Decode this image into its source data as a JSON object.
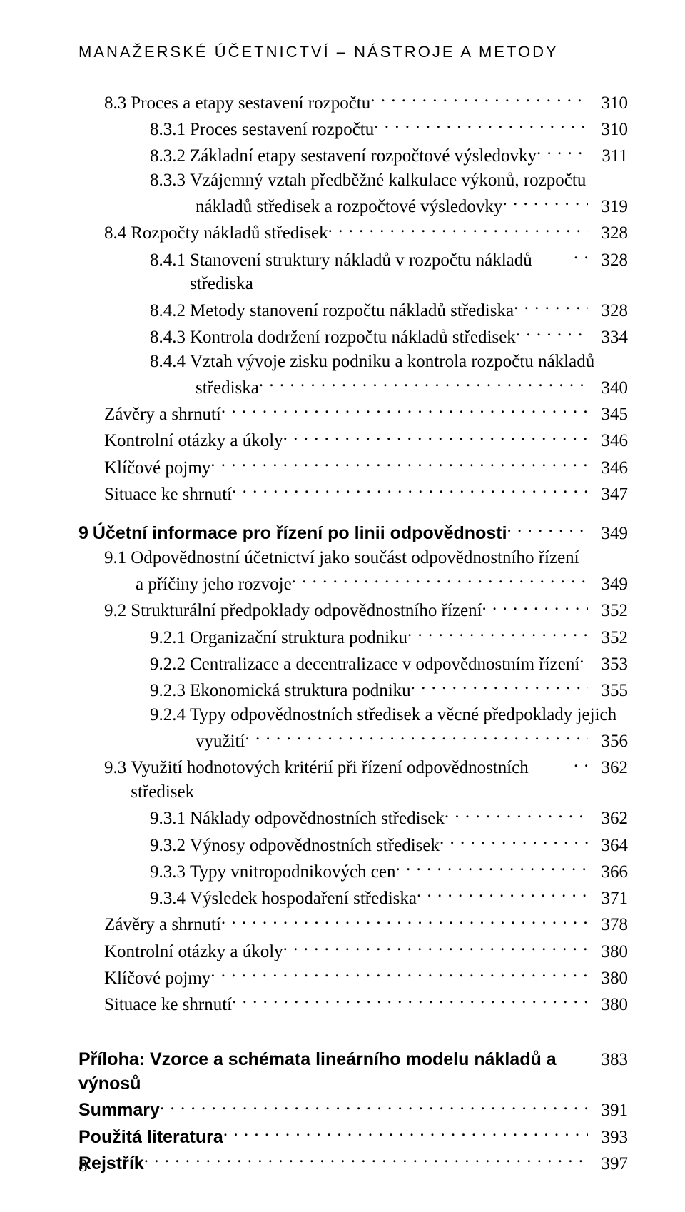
{
  "running_head": "MANAŽERSKÉ ÚČETNICTVÍ – NÁSTROJE A METODY",
  "folio": "8",
  "rows": [
    {
      "cls": "lv2",
      "num": "8.3",
      "label": "Proces a etapy sestavení rozpočtu",
      "page": "310"
    },
    {
      "cls": "lv3",
      "num": "8.3.1",
      "label": "Proces sestavení rozpočtu",
      "page": "310"
    },
    {
      "cls": "lv3",
      "num": "8.3.2",
      "label": "Základní etapy sestavení rozpočtové výsledovky",
      "page": "311"
    },
    {
      "cls": "lv3",
      "num": "8.3.3",
      "label": "Vzájemný vztah předběžné kalkulace výkonů, rozpočtu",
      "nopage": true
    },
    {
      "cls": "cont",
      "label": "nákladů středisek a rozpočtové výsledovky",
      "page": "319"
    },
    {
      "cls": "lv2",
      "num": "8.4",
      "label": "Rozpočty nákladů středisek",
      "page": "328"
    },
    {
      "cls": "lv3",
      "num": "8.4.1",
      "label": "Stanovení struktury nákladů v rozpočtu nákladů střediska",
      "page": "328",
      "tight": true
    },
    {
      "cls": "lv3",
      "num": "8.4.2",
      "label": "Metody stanovení rozpočtu nákladů střediska",
      "page": "328"
    },
    {
      "cls": "lv3",
      "num": "8.4.3",
      "label": "Kontrola dodržení rozpočtu nákladů středisek",
      "page": "334"
    },
    {
      "cls": "lv3",
      "num": "8.4.4",
      "label": "Vztah vývoje zisku podniku a kontrola rozpočtu nákladů",
      "nopage": true
    },
    {
      "cls": "cont",
      "label": "střediska",
      "page": "340"
    },
    {
      "cls": "lv2",
      "label": "Závěry a shrnutí",
      "page": "345"
    },
    {
      "cls": "lv2",
      "label": "Kontrolní otázky a úkoly",
      "page": "346"
    },
    {
      "cls": "lv2",
      "label": "Klíčové pojmy",
      "page": "346"
    },
    {
      "cls": "lv2",
      "label": "Situace ke shrnutí",
      "page": "347"
    },
    {
      "gap": "block-gap"
    },
    {
      "cls": "lv1",
      "num": "9",
      "numcls": "chapter-num",
      "label": "Účetní informace pro řízení po linii odpovědnosti",
      "labelcls": "chapter-title",
      "page": "349"
    },
    {
      "cls": "lv2",
      "num": "9.1",
      "label": "Odpovědnostní účetnictví jako součást odpovědnostního řízení",
      "nopage": true
    },
    {
      "cls": "cont2",
      "label": "a příčiny jeho rozvoje",
      "page": "349",
      "contpad": "80px"
    },
    {
      "cls": "lv2",
      "num": "9.2",
      "label": "Strukturální předpoklady odpovědnostního řízení",
      "page": "352"
    },
    {
      "cls": "lv3",
      "num": "9.2.1",
      "label": "Organizační struktura podniku",
      "page": "352"
    },
    {
      "cls": "lv3",
      "num": "9.2.2",
      "label": "Centralizace a decentralizace v odpovědnostním řízení",
      "page": "353"
    },
    {
      "cls": "lv3",
      "num": "9.2.3",
      "label": "Ekonomická struktura podniku",
      "page": "355"
    },
    {
      "cls": "lv3",
      "num": "9.2.4",
      "label": "Typy odpovědnostních středisek a věcné předpoklady jejich",
      "nopage": true
    },
    {
      "cls": "cont",
      "label": "využití",
      "page": "356"
    },
    {
      "cls": "lv2",
      "num": "9.3",
      "label": "Využití hodnotových kritérií při řízení odpovědnostních středisek",
      "page": "362",
      "tight": true
    },
    {
      "cls": "lv3",
      "num": "9.3.1",
      "label": "Náklady odpovědnostních středisek",
      "page": "362"
    },
    {
      "cls": "lv3",
      "num": "9.3.2",
      "label": "Výnosy odpovědnostních středisek",
      "page": "364"
    },
    {
      "cls": "lv3",
      "num": "9.3.3",
      "label": "Typy vnitropodnikových cen",
      "page": "366"
    },
    {
      "cls": "lv3",
      "num": "9.3.4",
      "label": "Výsledek hospodaření střediska",
      "page": "371"
    },
    {
      "cls": "lv2",
      "label": "Závěry a shrnutí",
      "page": "378"
    },
    {
      "cls": "lv2",
      "label": "Kontrolní otázky a úkoly",
      "page": "380"
    },
    {
      "cls": "lv2",
      "label": "Klíčové pojmy",
      "page": "380"
    },
    {
      "cls": "lv2",
      "label": "Situace ke shrnutí",
      "page": "380"
    },
    {
      "gap": "big-gap"
    },
    {
      "cls": "lv1 appendix",
      "label": "Příloha: Vzorce a schémata lineárního modelu nákladů a výnosů",
      "page": "383"
    },
    {
      "cls": "lv1 appendix",
      "label": "Summary",
      "page": "391"
    },
    {
      "cls": "lv1 appendix",
      "label": "Použitá literatura",
      "page": "393"
    },
    {
      "cls": "lv1 appendix",
      "label": "Rejstřík",
      "page": "397"
    }
  ]
}
